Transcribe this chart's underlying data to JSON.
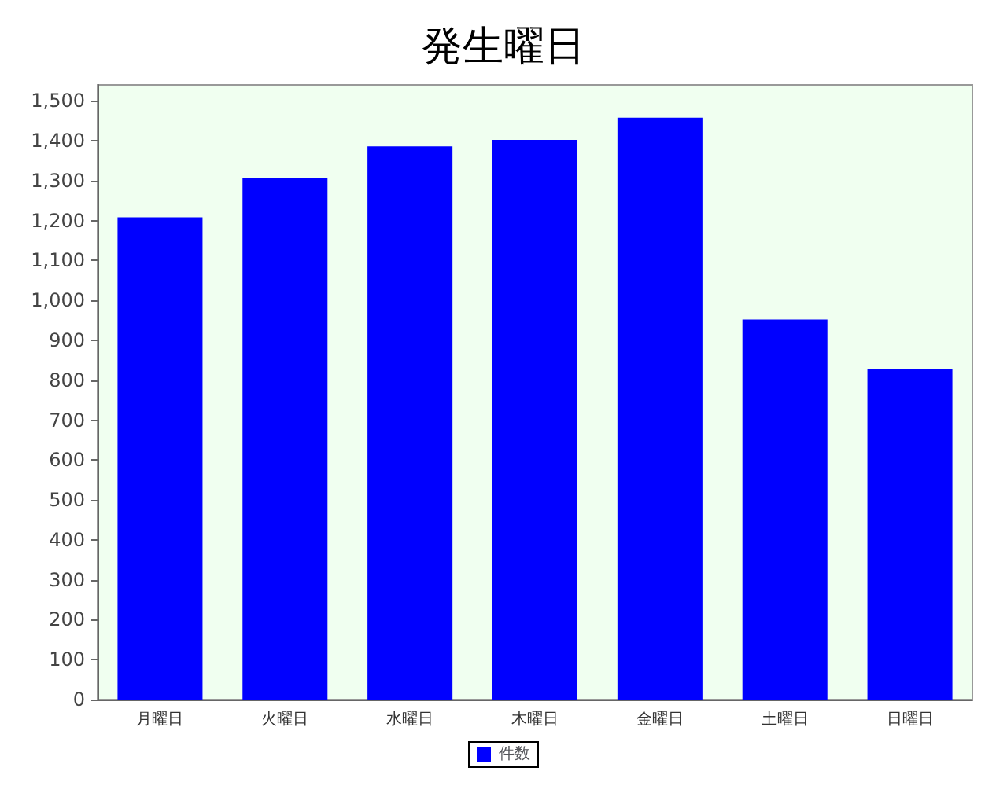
{
  "chart_data": {
    "type": "bar",
    "title": "発生曜日",
    "categories": [
      "月曜日",
      "火曜日",
      "水曜日",
      "木曜日",
      "金曜日",
      "土曜日",
      "日曜日"
    ],
    "series": [
      {
        "name": "件数",
        "color": "#0000ff",
        "values": [
          1208,
          1307,
          1386,
          1402,
          1458,
          952,
          827
        ]
      }
    ],
    "ylim": [
      0,
      1540
    ],
    "yticks": [
      0,
      100,
      200,
      300,
      400,
      500,
      600,
      700,
      800,
      900,
      {
        "value": 1000,
        "label": "1,000"
      },
      {
        "value": 1100,
        "label": "1,100"
      },
      {
        "value": 1200,
        "label": "1,200"
      },
      {
        "value": 1300,
        "label": "1,300"
      },
      {
        "value": 1400,
        "label": "1,400"
      },
      {
        "value": 1500,
        "label": "1,500"
      }
    ],
    "grid": false,
    "legend": "bottom"
  }
}
